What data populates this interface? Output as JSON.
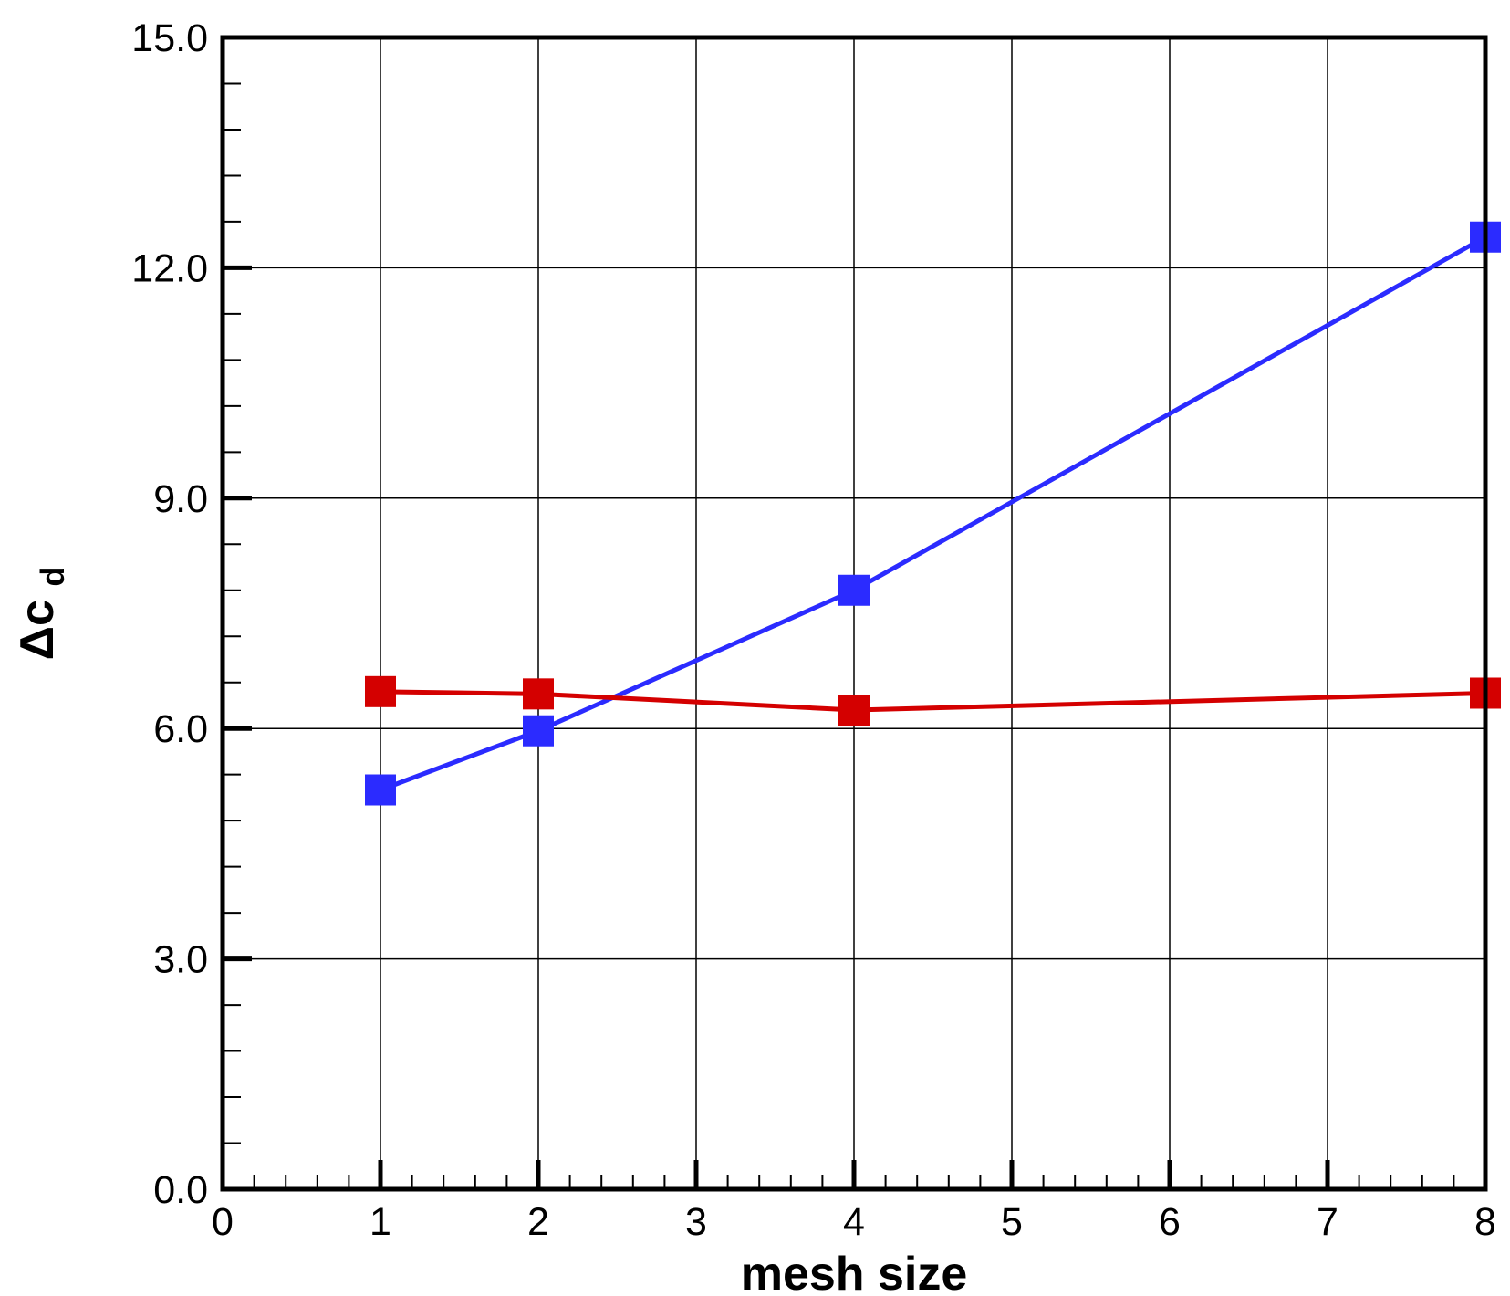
{
  "chart_data": {
    "type": "line",
    "title": "",
    "xlabel": "mesh size",
    "ylabel": {
      "main": "Δc",
      "subscript": "d"
    },
    "xlim": [
      0,
      8
    ],
    "ylim": [
      0,
      15
    ],
    "x_ticks": [
      0,
      1,
      2,
      3,
      4,
      5,
      6,
      7,
      8
    ],
    "x_tick_labels": [
      "0",
      "1",
      "2",
      "3",
      "4",
      "5",
      "6",
      "7",
      "8"
    ],
    "y_ticks": [
      0,
      3,
      6,
      9,
      12,
      15
    ],
    "y_tick_labels": [
      "0.0",
      "3.0",
      "6.0",
      "9.0",
      "12.0",
      "15.0"
    ],
    "x_minor_step": 0.2,
    "y_minor_step": 0.6,
    "grid": true,
    "legend": "none",
    "series": [
      {
        "color": "#2b2bff",
        "marker": "square",
        "x": [
          1,
          2,
          4,
          8
        ],
        "y": [
          5.2,
          5.97,
          7.8,
          12.4
        ]
      },
      {
        "color": "#d40000",
        "marker": "square",
        "x": [
          1,
          2,
          4,
          8
        ],
        "y": [
          6.48,
          6.45,
          6.24,
          6.46
        ]
      }
    ]
  }
}
